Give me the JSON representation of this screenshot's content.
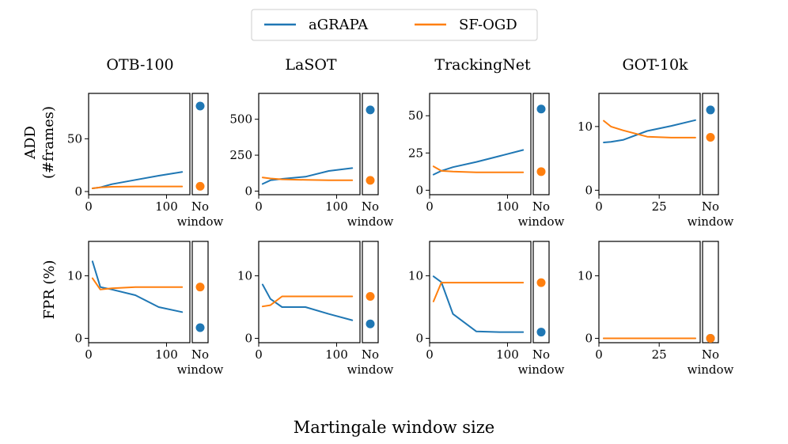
{
  "chart_data": {
    "type": "line",
    "xlabel": "Martingale window size",
    "legend": {
      "placement": "top-center",
      "entries": [
        {
          "name": "aGRAPA",
          "color": "#1f77b4"
        },
        {
          "name": "SF-OGD",
          "color": "#ff7f0e"
        }
      ]
    },
    "row_labels": [
      {
        "line1": "ADD",
        "line2": "(#frames)"
      },
      {
        "line1": "FPR (%)",
        "line2": ""
      }
    ],
    "no_window_label": {
      "line1": "No",
      "line2": "window"
    },
    "panels": [
      {
        "dataset": "OTB-100",
        "row": 0,
        "col": 0,
        "xlim": [
          0,
          130
        ],
        "xticks": [
          0,
          100
        ],
        "ylim": [
          -3,
          93
        ],
        "yticks": [
          0,
          50
        ],
        "series": [
          {
            "name": "aGRAPA",
            "x": [
              5,
              15,
              30,
              60,
              90,
              120
            ],
            "y": [
              3,
              4,
              7,
              11,
              15,
              18.5
            ]
          },
          {
            "name": "SF-OGD",
            "x": [
              5,
              15,
              30,
              60,
              90,
              120
            ],
            "y": [
              3,
              4,
              4.5,
              4.8,
              4.8,
              4.8
            ]
          }
        ],
        "no_window": {
          "aGRAPA": 81,
          "SF-OGD": 5
        }
      },
      {
        "dataset": "LaSOT",
        "row": 0,
        "col": 1,
        "xlim": [
          0,
          130
        ],
        "xticks": [
          0,
          100
        ],
        "ylim": [
          -25,
          680
        ],
        "yticks": [
          0,
          250,
          500
        ],
        "series": [
          {
            "name": "aGRAPA",
            "x": [
              5,
              15,
              30,
              60,
              90,
              120
            ],
            "y": [
              50,
              75,
              85,
              100,
              140,
              160
            ]
          },
          {
            "name": "SF-OGD",
            "x": [
              5,
              15,
              30,
              60,
              90,
              120
            ],
            "y": [
              95,
              88,
              82,
              78,
              76,
              75
            ]
          }
        ],
        "no_window": {
          "aGRAPA": 565,
          "SF-OGD": 75
        }
      },
      {
        "dataset": "TrackingNet",
        "row": 0,
        "col": 2,
        "xlim": [
          0,
          130
        ],
        "xticks": [
          0,
          100
        ],
        "ylim": [
          -3,
          65
        ],
        "yticks": [
          0,
          25,
          50
        ],
        "series": [
          {
            "name": "aGRAPA",
            "x": [
              5,
              15,
              30,
              60,
              90,
              120
            ],
            "y": [
              10.5,
              13,
              15.5,
              19,
              23,
              27
            ]
          },
          {
            "name": "SF-OGD",
            "x": [
              5,
              15,
              30,
              60,
              90,
              120
            ],
            "y": [
              16,
              13,
              12.5,
              12,
              12,
              12
            ]
          }
        ],
        "no_window": {
          "aGRAPA": 54.5,
          "SF-OGD": 12.5
        }
      },
      {
        "dataset": "GOT-10k",
        "row": 0,
        "col": 3,
        "xlim": [
          0,
          42
        ],
        "xticks": [
          0,
          25
        ],
        "ylim": [
          -0.7,
          15.2
        ],
        "yticks": [
          0,
          10
        ],
        "series": [
          {
            "name": "aGRAPA",
            "x": [
              2,
              5,
              10,
              20,
              30,
              40
            ],
            "y": [
              7.5,
              7.6,
              7.9,
              9.3,
              10.1,
              11
            ]
          },
          {
            "name": "SF-OGD",
            "x": [
              2,
              5,
              10,
              20,
              30,
              40
            ],
            "y": [
              10.9,
              10,
              9.4,
              8.4,
              8.25,
              8.25
            ]
          }
        ],
        "no_window": {
          "aGRAPA": 12.6,
          "SF-OGD": 8.3
        }
      },
      {
        "dataset": "OTB-100",
        "row": 1,
        "col": 0,
        "xlim": [
          0,
          130
        ],
        "xticks": [
          0,
          100
        ],
        "ylim": [
          -0.7,
          15.5
        ],
        "yticks": [
          0,
          10
        ],
        "series": [
          {
            "name": "aGRAPA",
            "x": [
              5,
              15,
              30,
              60,
              90,
              120
            ],
            "y": [
              12.3,
              8.2,
              7.8,
              6.9,
              5,
              4.2
            ]
          },
          {
            "name": "SF-OGD",
            "x": [
              5,
              15,
              30,
              60,
              90,
              120
            ],
            "y": [
              9.6,
              7.8,
              8,
              8.2,
              8.2,
              8.2
            ]
          }
        ],
        "no_window": {
          "aGRAPA": 1.7,
          "SF-OGD": 8.2
        }
      },
      {
        "dataset": "LaSOT",
        "row": 1,
        "col": 1,
        "xlim": [
          0,
          130
        ],
        "xticks": [
          0,
          100
        ],
        "ylim": [
          -0.7,
          15.5
        ],
        "yticks": [
          0,
          10
        ],
        "series": [
          {
            "name": "aGRAPA",
            "x": [
              5,
              15,
              30,
              60,
              90,
              120
            ],
            "y": [
              8.6,
              6.3,
              5,
              5,
              3.9,
              2.9
            ]
          },
          {
            "name": "SF-OGD",
            "x": [
              5,
              15,
              30,
              60,
              90,
              120
            ],
            "y": [
              5.1,
              5.3,
              6.7,
              6.7,
              6.7,
              6.7
            ]
          }
        ],
        "no_window": {
          "aGRAPA": 2.3,
          "SF-OGD": 6.7
        }
      },
      {
        "dataset": "TrackingNet",
        "row": 1,
        "col": 2,
        "xlim": [
          0,
          130
        ],
        "xticks": [
          0,
          100
        ],
        "ylim": [
          -0.7,
          15.5
        ],
        "yticks": [
          0,
          10
        ],
        "series": [
          {
            "name": "aGRAPA",
            "x": [
              5,
              15,
              30,
              60,
              90,
              120
            ],
            "y": [
              9.9,
              9,
              3.9,
              1.1,
              1,
              1
            ]
          },
          {
            "name": "SF-OGD",
            "x": [
              5,
              15,
              30,
              60,
              90,
              120
            ],
            "y": [
              5.9,
              8.9,
              8.9,
              8.9,
              8.9,
              8.9
            ]
          }
        ],
        "no_window": {
          "aGRAPA": 1,
          "SF-OGD": 8.9
        }
      },
      {
        "dataset": "GOT-10k",
        "row": 1,
        "col": 3,
        "xlim": [
          0,
          42
        ],
        "xticks": [
          0,
          25
        ],
        "ylim": [
          -0.7,
          15.5
        ],
        "yticks": [
          0,
          10
        ],
        "series": [
          {
            "name": "aGRAPA",
            "x": [
              2,
              5,
              10,
              20,
              30,
              40
            ],
            "y": [
              0,
              0,
              0,
              0,
              0,
              0
            ]
          },
          {
            "name": "SF-OGD",
            "x": [
              2,
              5,
              10,
              20,
              30,
              40
            ],
            "y": [
              0,
              0,
              0,
              0,
              0,
              0
            ]
          }
        ],
        "no_window": {
          "aGRAPA": 0,
          "SF-OGD": 0
        }
      }
    ]
  }
}
